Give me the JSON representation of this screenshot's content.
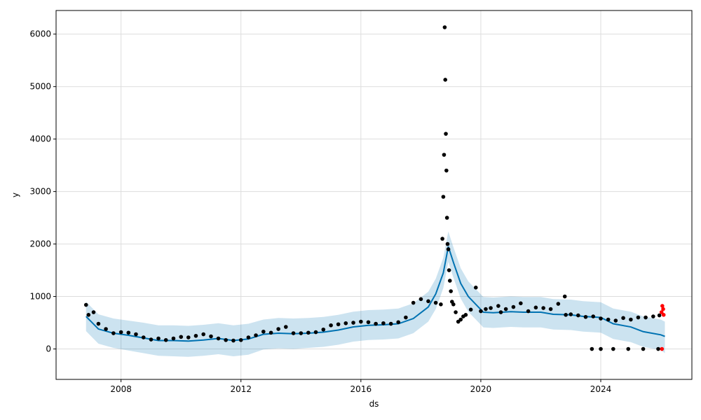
{
  "chart_data": {
    "type": "scatter",
    "title": "",
    "xlabel": "ds",
    "ylabel": "y",
    "grid": true,
    "xlim": [
      "2005-11-01",
      "2027-01-15"
    ],
    "ylim": [
      -580,
      6450
    ],
    "x_ticks": [
      "2008",
      "2012",
      "2016",
      "2020",
      "2024"
    ],
    "y_ticks": [
      0,
      1000,
      2000,
      3000,
      4000,
      5000,
      6000
    ],
    "colors": {
      "observed": "#000000",
      "forecast_line": "#0072B2",
      "interval_fill": "#0072B2",
      "future_points": "#ff0000",
      "grid": "#dddddd"
    },
    "series": [
      {
        "role": "observed",
        "x": [
          "2006-11-01",
          "2006-12-01",
          "2007-02-01",
          "2007-04-01",
          "2007-07-01",
          "2007-10-01",
          "2008-01-01",
          "2008-04-01",
          "2008-07-01",
          "2008-10-01",
          "2009-01-01",
          "2009-04-01",
          "2009-07-01",
          "2009-10-01",
          "2010-01-01",
          "2010-04-01",
          "2010-07-01",
          "2010-10-01",
          "2011-01-01",
          "2011-04-01",
          "2011-07-01",
          "2011-10-01",
          "2012-01-01",
          "2012-04-01",
          "2012-07-01",
          "2012-10-01",
          "2013-01-01",
          "2013-04-01",
          "2013-07-01",
          "2013-10-01",
          "2014-01-01",
          "2014-04-01",
          "2014-07-01",
          "2014-10-01",
          "2015-01-01",
          "2015-04-01",
          "2015-07-01",
          "2015-10-01",
          "2016-01-01",
          "2016-04-01",
          "2016-07-01",
          "2016-10-01",
          "2017-01-01",
          "2017-04-01",
          "2017-07-01",
          "2017-10-01",
          "2018-01-01",
          "2018-04-01",
          "2018-07-01",
          "2018-09-01",
          "2018-09-20",
          "2018-10-01",
          "2018-10-10",
          "2018-10-18",
          "2018-10-25",
          "2018-11-01",
          "2018-11-08",
          "2018-11-15",
          "2018-11-22",
          "2018-12-01",
          "2018-12-10",
          "2018-12-20",
          "2019-01-01",
          "2019-01-15",
          "2019-02-01",
          "2019-03-01",
          "2019-04-01",
          "2019-05-01",
          "2019-06-01",
          "2019-07-01",
          "2019-09-01",
          "2019-11-01",
          "2020-01-01",
          "2020-03-01",
          "2020-05-01",
          "2020-08-01",
          "2020-09-01",
          "2020-11-01",
          "2021-02-01",
          "2021-05-01",
          "2021-08-01",
          "2021-11-01",
          "2022-02-01",
          "2022-05-01",
          "2022-08-01",
          "2022-10-20",
          "2022-11-01",
          "2023-01-01",
          "2023-04-01",
          "2023-07-01",
          "2023-10-01",
          "2024-01-01",
          "2024-04-01",
          "2024-07-01",
          "2024-10-01",
          "2025-01-01",
          "2025-04-01",
          "2025-07-01",
          "2025-10-01",
          "2025-12-15",
          "2023-09-15",
          "2024-01-01",
          "2024-06-01",
          "2024-12-01",
          "2025-06-01",
          "2025-12-01"
        ],
        "y": [
          840,
          650,
          700,
          480,
          380,
          300,
          320,
          310,
          280,
          220,
          180,
          200,
          170,
          200,
          230,
          220,
          250,
          280,
          240,
          200,
          170,
          160,
          170,
          220,
          260,
          330,
          310,
          380,
          420,
          300,
          300,
          310,
          320,
          370,
          450,
          470,
          490,
          500,
          520,
          510,
          480,
          490,
          480,
          510,
          600,
          880,
          950,
          910,
          880,
          850,
          2100,
          2900,
          3700,
          6130,
          5130,
          4100,
          3400,
          2500,
          2000,
          1900,
          1500,
          1300,
          1100,
          900,
          850,
          700,
          520,
          560,
          620,
          650,
          750,
          1170,
          720,
          760,
          780,
          820,
          700,
          760,
          800,
          870,
          720,
          790,
          780,
          760,
          860,
          1000,
          650,
          660,
          640,
          610,
          620,
          580,
          560,
          540,
          590,
          560,
          600,
          600,
          620,
          640,
          0,
          0,
          0,
          0,
          0,
          0
        ]
      },
      {
        "role": "forecast",
        "x": [
          "2006-11-01",
          "2007-04-01",
          "2007-10-01",
          "2008-04-01",
          "2008-10-01",
          "2009-04-01",
          "2009-10-01",
          "2010-04-01",
          "2010-10-01",
          "2011-04-01",
          "2011-10-01",
          "2012-04-01",
          "2012-10-01",
          "2013-04-01",
          "2013-10-01",
          "2014-04-01",
          "2014-10-01",
          "2015-04-01",
          "2015-10-01",
          "2016-04-01",
          "2016-10-01",
          "2017-04-01",
          "2017-10-01",
          "2018-04-01",
          "2018-07-01",
          "2018-10-01",
          "2018-12-01",
          "2019-02-01",
          "2019-05-01",
          "2019-08-01",
          "2019-11-01",
          "2020-02-01",
          "2020-06-01",
          "2021-01-01",
          "2021-06-01",
          "2022-01-01",
          "2022-06-01",
          "2023-01-01",
          "2023-06-01",
          "2024-01-01",
          "2024-06-01",
          "2025-01-01",
          "2025-06-01",
          "2026-01-01",
          "2026-02-20"
        ],
        "yhat": [
          620,
          380,
          300,
          260,
          210,
          160,
          160,
          150,
          170,
          200,
          160,
          190,
          280,
          300,
          290,
          300,
          320,
          360,
          420,
          450,
          460,
          480,
          580,
          800,
          1050,
          1450,
          1950,
          1650,
          1250,
          1000,
          850,
          700,
          690,
          710,
          700,
          700,
          660,
          650,
          620,
          600,
          480,
          420,
          330,
          270,
          240
        ],
        "yhat_lower": [
          340,
          100,
          20,
          -30,
          -80,
          -130,
          -140,
          -150,
          -130,
          -100,
          -140,
          -110,
          -10,
          10,
          0,
          20,
          40,
          80,
          140,
          170,
          180,
          200,
          300,
          520,
          760,
          1160,
          1660,
          1360,
          960,
          710,
          560,
          410,
          400,
          420,
          410,
          410,
          370,
          360,
          330,
          310,
          190,
          130,
          40,
          -20,
          -80
        ],
        "yhat_upper": [
          900,
          660,
          580,
          540,
          500,
          450,
          450,
          440,
          460,
          490,
          450,
          480,
          560,
          590,
          580,
          590,
          610,
          650,
          710,
          740,
          750,
          770,
          870,
          1090,
          1340,
          1740,
          2240,
          1940,
          1540,
          1290,
          1140,
          990,
          980,
          1000,
          990,
          990,
          950,
          940,
          910,
          890,
          770,
          710,
          620,
          560,
          520
        ]
      },
      {
        "role": "future_observed",
        "x": [
          "2026-01-10",
          "2026-01-20",
          "2026-01-30",
          "2026-02-05",
          "2026-01-15"
        ],
        "y": [
          700,
          820,
          760,
          650,
          0
        ]
      }
    ]
  }
}
